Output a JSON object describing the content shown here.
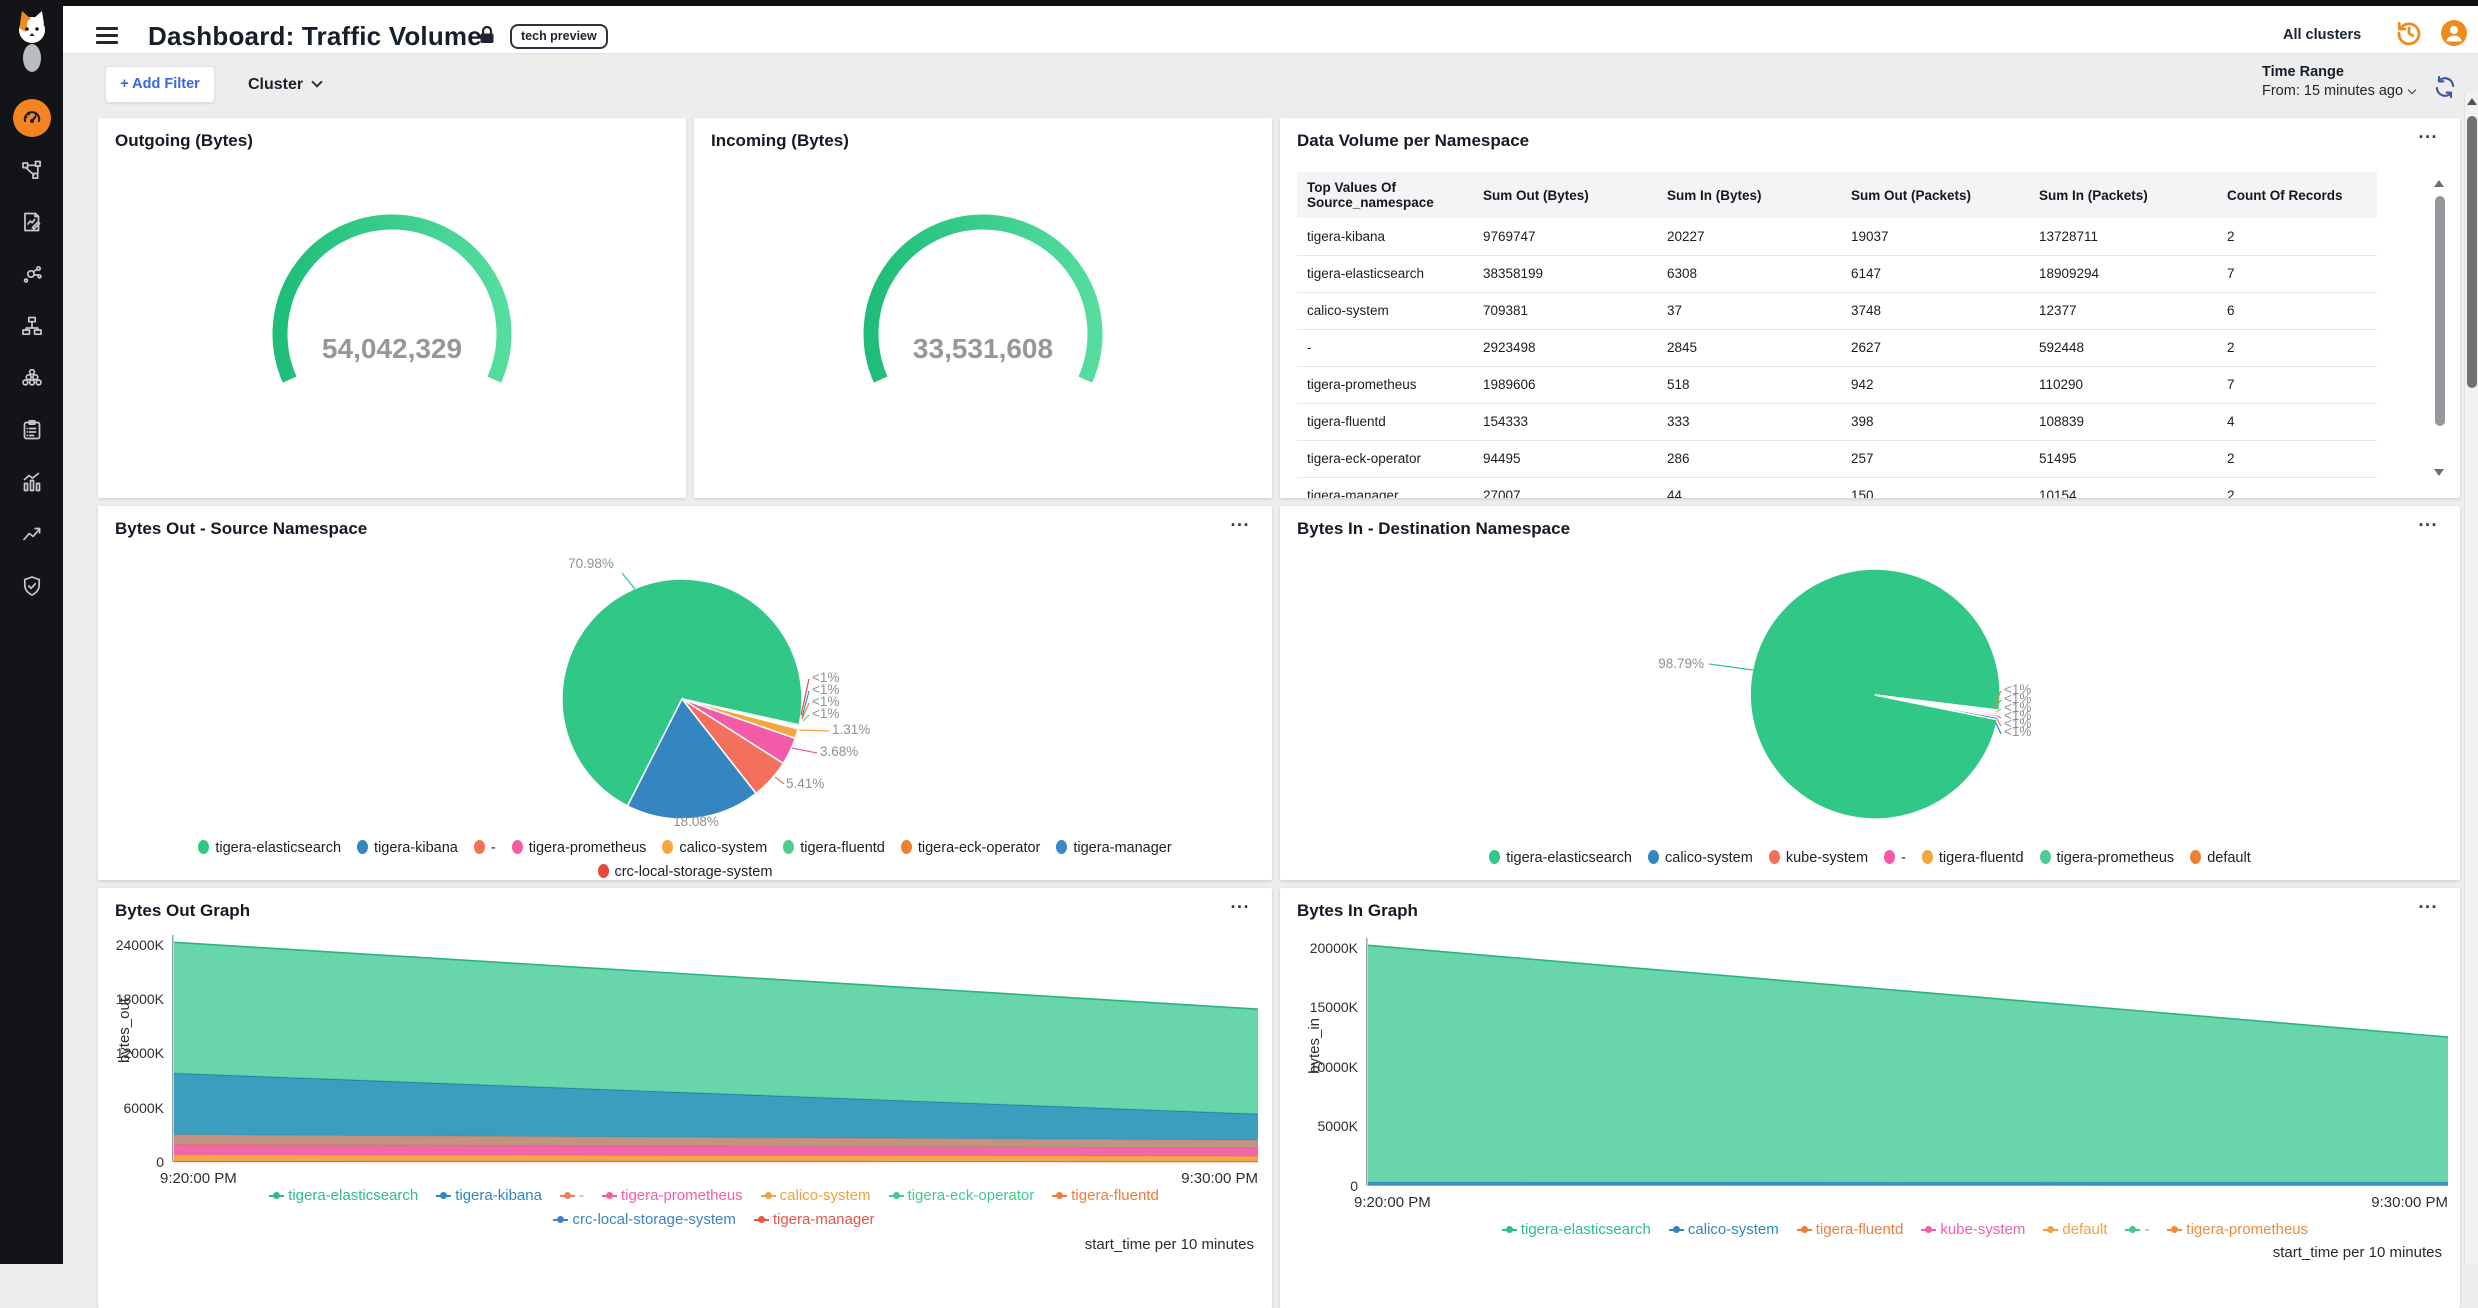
{
  "ui": {
    "panel_menu": "...",
    "all_clusters": "All clusters"
  },
  "header": {
    "title": "Dashboard: Traffic Volume",
    "badge": "tech preview"
  },
  "filter_bar": {
    "add_filter": "+ Add Filter",
    "cluster": "Cluster",
    "time_range_label": "Time Range",
    "time_range_value": "From: 15 minutes ago"
  },
  "panels": {
    "outgoing": {
      "title": "Outgoing (Bytes)",
      "value": "54,042,329"
    },
    "incoming": {
      "title": "Incoming (Bytes)",
      "value": "33,531,608"
    },
    "table": {
      "title": "Data Volume per Namespace",
      "columns": [
        "Top Values Of Source_namespace",
        "Sum Out (Bytes)",
        "Sum In (Bytes)",
        "Sum Out (Packets)",
        "Sum In (Packets)",
        "Count Of Records"
      ],
      "rows": [
        [
          "tigera-kibana",
          "9769747",
          "20227",
          "19037",
          "13728711",
          "2"
        ],
        [
          "tigera-elasticsearch",
          "38358199",
          "6308",
          "6147",
          "18909294",
          "7"
        ],
        [
          "calico-system",
          "709381",
          "37",
          "3748",
          "12377",
          "6"
        ],
        [
          "-",
          "2923498",
          "2845",
          "2627",
          "592448",
          "2"
        ],
        [
          "tigera-prometheus",
          "1989606",
          "518",
          "942",
          "110290",
          "7"
        ],
        [
          "tigera-fluentd",
          "154333",
          "333",
          "398",
          "108839",
          "4"
        ],
        [
          "tigera-eck-operator",
          "94495",
          "286",
          "257",
          "51495",
          "2"
        ],
        [
          "tigera-manager",
          "27007",
          "44",
          "150",
          "10154",
          "2"
        ]
      ]
    },
    "pie_out": {
      "title": "Bytes Out - Source Namespace"
    },
    "pie_in": {
      "title": "Bytes In - Destination Namespace"
    },
    "graph_out": {
      "title": "Bytes Out Graph"
    },
    "graph_in": {
      "title": "Bytes In Graph"
    }
  },
  "chart_data": [
    {
      "id": "gauge_out",
      "type": "gauge",
      "title": "Outgoing (Bytes)",
      "value": 54042329,
      "display": "54,042,329",
      "color_start": "#1fbd79",
      "color_end": "#55dd9e"
    },
    {
      "id": "gauge_in",
      "type": "gauge",
      "title": "Incoming (Bytes)",
      "value": 33531608,
      "display": "33,531,608",
      "color_start": "#1fbd79",
      "color_end": "#55dd9e"
    },
    {
      "id": "pie_out",
      "type": "pie",
      "title": "Bytes Out - Source Namespace",
      "unit": "percent",
      "slices": [
        {
          "label": "tigera-elasticsearch",
          "value": 70.98,
          "pct_label": "70.98%",
          "color": "#30c787"
        },
        {
          "label": "tigera-kibana",
          "value": 18.08,
          "pct_label": "18.08%",
          "color": "#3585c1"
        },
        {
          "label": "-",
          "value": 5.41,
          "pct_label": "5.41%",
          "color": "#f3715c"
        },
        {
          "label": "tigera-prometheus",
          "value": 3.68,
          "pct_label": "3.68%",
          "color": "#f35ba6"
        },
        {
          "label": "calico-system",
          "value": 1.31,
          "pct_label": "1.31%",
          "color": "#f5a63c"
        },
        {
          "label": "tigera-fluentd",
          "value": 0.18,
          "pct_label": "<1%",
          "color": "#4ecf92"
        },
        {
          "label": "tigera-eck-operator",
          "value": 0.14,
          "pct_label": "<1%",
          "color": "#ee8031"
        },
        {
          "label": "tigera-manager",
          "value": 0.12,
          "pct_label": "<1%",
          "color": "#3c86c9"
        },
        {
          "label": "crc-local-storage-system",
          "value": 0.1,
          "pct_label": "<1%",
          "color": "#e6493e"
        }
      ]
    },
    {
      "id": "pie_in",
      "type": "pie",
      "title": "Bytes In - Destination Namespace",
      "unit": "percent",
      "slices": [
        {
          "label": "tigera-elasticsearch",
          "value": 98.79,
          "pct_label": "98.79%",
          "color": "#30c787"
        },
        {
          "label": "calico-system",
          "value": 0.32,
          "pct_label": "<1%",
          "color": "#3585c1"
        },
        {
          "label": "kube-system",
          "value": 0.26,
          "pct_label": "<1%",
          "color": "#f3715c"
        },
        {
          "label": "-",
          "value": 0.24,
          "pct_label": "<1%",
          "color": "#f35ba6"
        },
        {
          "label": "tigera-fluentd",
          "value": 0.22,
          "pct_label": "<1%",
          "color": "#f5a63c"
        },
        {
          "label": "tigera-prometheus",
          "value": 0.12,
          "pct_label": "<1%",
          "color": "#4ecf92"
        },
        {
          "label": "default",
          "value": 0.05,
          "pct_label": "<1%",
          "color": "#ee8031"
        }
      ]
    },
    {
      "id": "area_out",
      "type": "area",
      "stacked": true,
      "title": "Bytes Out Graph",
      "xlabel": "start_time per 10 minutes",
      "ylabel": "bytes_out",
      "x": [
        "9:20:00 PM",
        "9:30:00 PM"
      ],
      "yticks": [
        "24000K",
        "18000K",
        "12000K",
        "6000K",
        "0"
      ],
      "ymax_k": 24000,
      "series": [
        {
          "name": "crc-local-storage-system",
          "color": "#d9534f",
          "values_k": [
            80,
            65
          ]
        },
        {
          "name": "calico-system",
          "color": "#f2a13d",
          "values_k": [
            700,
            580
          ]
        },
        {
          "name": "tigera-prometheus",
          "color": "#ef5ba1",
          "values_k": [
            1150,
            900
          ]
        },
        {
          "name": "-",
          "color": "#bd8a74",
          "values_k": [
            1100,
            880
          ]
        },
        {
          "name": "tigera-kibana",
          "color": "#2b96b8",
          "line": "#1d7fa3",
          "values_k": [
            6800,
            2900
          ]
        },
        {
          "name": "tigera-elasticsearch",
          "color": "#5bd3a3",
          "line": "#2db380",
          "values_k": [
            14470,
            11575
          ]
        }
      ],
      "legend": [
        {
          "label": "tigera-elasticsearch",
          "color": "#2fbd84"
        },
        {
          "label": "tigera-kibana",
          "color": "#2e86c1"
        },
        {
          "label": "-",
          "color": "#f0815c"
        },
        {
          "label": "tigera-prometheus",
          "color": "#f05fa7"
        },
        {
          "label": "calico-system",
          "color": "#f2a13d"
        },
        {
          "label": "tigera-eck-operator",
          "color": "#43c98e"
        },
        {
          "label": "tigera-fluentd",
          "color": "#ef7d3b"
        },
        {
          "label": "crc-local-storage-system",
          "color": "#3b83c7"
        },
        {
          "label": "tigera-manager",
          "color": "#e3574a"
        }
      ],
      "legend_rows": [
        7,
        2
      ]
    },
    {
      "id": "area_in",
      "type": "area",
      "stacked": true,
      "title": "Bytes In Graph",
      "xlabel": "start_time per 10 minutes",
      "ylabel": "bytes_in",
      "x": [
        "9:20:00 PM",
        "9:30:00 PM"
      ],
      "yticks": [
        "20000K",
        "15000K",
        "10000K",
        "5000K",
        "0"
      ],
      "ymax_k": 20000,
      "series": [
        {
          "name": "tigera-fluentd",
          "color": "#f2a13d",
          "values_k": [
            70,
            60
          ]
        },
        {
          "name": "calico-system",
          "color": "#2b87c0",
          "values_k": [
            260,
            250
          ]
        },
        {
          "name": "tigera-elasticsearch",
          "color": "#5bd3a3",
          "line": "#2db380",
          "values_k": [
            19900,
            12200
          ]
        }
      ],
      "legend": [
        {
          "label": "tigera-elasticsearch",
          "color": "#2fbd84"
        },
        {
          "label": "calico-system",
          "color": "#2e86c1"
        },
        {
          "label": "tigera-fluentd",
          "color": "#ef7d3b"
        },
        {
          "label": "kube-system",
          "color": "#f05fa7"
        },
        {
          "label": "default",
          "color": "#f2a13d"
        },
        {
          "label": "-",
          "color": "#43c98e"
        },
        {
          "label": "tigera-prometheus",
          "color": "#f08a3c"
        }
      ],
      "legend_rows": [
        7
      ]
    }
  ],
  "colors": {
    "accent_orange": "#f5831f",
    "green": "#30c787",
    "blue": "#3585c1",
    "link_blue": "#3a66db",
    "rail_bg": "#131417"
  }
}
